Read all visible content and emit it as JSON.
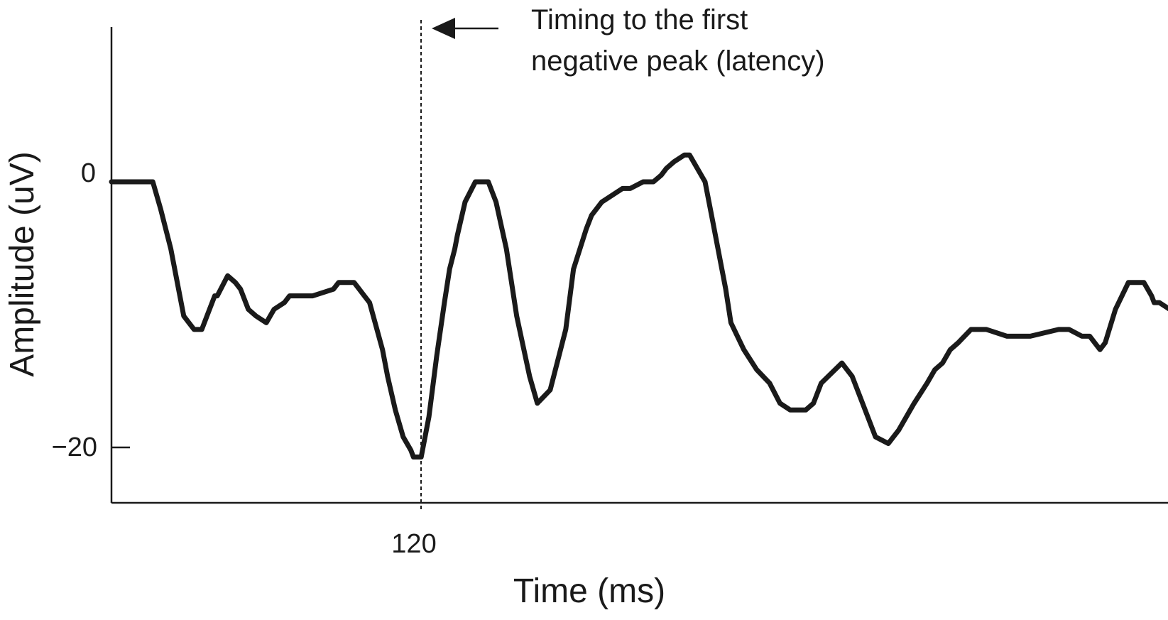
{
  "chart_data": {
    "type": "line",
    "title": "",
    "xlabel": "Time (ms)",
    "ylabel": "Amplitude (uV)",
    "x_ticks": [
      {
        "value": 120,
        "label": "120"
      }
    ],
    "y_ticks": [
      {
        "value": 0,
        "label": "0"
      },
      {
        "value": -20,
        "label": "−20"
      }
    ],
    "xlim": [
      0,
      411
    ],
    "ylim": [
      -24,
      11.5
    ],
    "grid": false,
    "series": [
      {
        "x": [
          0,
          7,
          16,
          19,
          23,
          26,
          28,
          32,
          35,
          38,
          40,
          41,
          45,
          48,
          50,
          53,
          56,
          60,
          63,
          67,
          69,
          73,
          75,
          78,
          86,
          88,
          91,
          94,
          100,
          105,
          107,
          110,
          113,
          116,
          117,
          118,
          120,
          123,
          126,
          129,
          131,
          133,
          134,
          137,
          141,
          144,
          146,
          149,
          153,
          157,
          162,
          165,
          170,
          176,
          179,
          184,
          186,
          190,
          198,
          201,
          206,
          210,
          213,
          215,
          218,
          222,
          224,
          230,
          233,
          238,
          240,
          245,
          250,
          255,
          259,
          263,
          269,
          272,
          275,
          283,
          287,
          291,
          296,
          301,
          305,
          311,
          316,
          319,
          322,
          325,
          328,
          333,
          339,
          347,
          356,
          367,
          371,
          376,
          379,
          383,
          385,
          389,
          394,
          396,
          400,
          403,
          404,
          406,
          410
        ],
        "values": [
          0,
          0,
          0,
          -2,
          -5,
          -8,
          -10,
          -11,
          -11,
          -9.5,
          -8.5,
          -8.5,
          -7,
          -7.5,
          -8,
          -9.5,
          -10,
          -10.5,
          -9.5,
          -9,
          -8.5,
          -8.5,
          -8.5,
          -8.5,
          -8,
          -7.5,
          -7.5,
          -7.5,
          -9,
          -12.5,
          -14.5,
          -17,
          -19,
          -20,
          -20.5,
          -20.5,
          -20.5,
          -17.5,
          -13,
          -9,
          -6.5,
          -5,
          -4,
          -1.5,
          0,
          0,
          0,
          -1.5,
          -5,
          -10,
          -14.5,
          -16.5,
          -15.5,
          -11,
          -6.5,
          -3.5,
          -2.5,
          -1.5,
          -0.5,
          -0.5,
          0,
          0,
          0.5,
          1,
          1.5,
          2,
          2,
          0,
          -3,
          -8,
          -10.5,
          -12.5,
          -14,
          -15,
          -16.5,
          -17,
          -17,
          -16.5,
          -15,
          -13.5,
          -14.5,
          -16.5,
          -19,
          -19.5,
          -18.5,
          -16.5,
          -15,
          -14,
          -13.5,
          -12.5,
          -12,
          -11,
          -11,
          -11.5,
          -11.5,
          -11,
          -11,
          -11.5,
          -11.5,
          -12.5,
          -12,
          -9.5,
          -7.5,
          -7.5,
          -7.5,
          -8.5,
          -9,
          -9,
          -9.5
        ]
      }
    ],
    "annotations": [
      {
        "text_lines": [
          "Timing to the first",
          "negative peak (latency)"
        ],
        "marker_x": 120,
        "marker_style": "dashed vertical line with arrow"
      }
    ]
  }
}
